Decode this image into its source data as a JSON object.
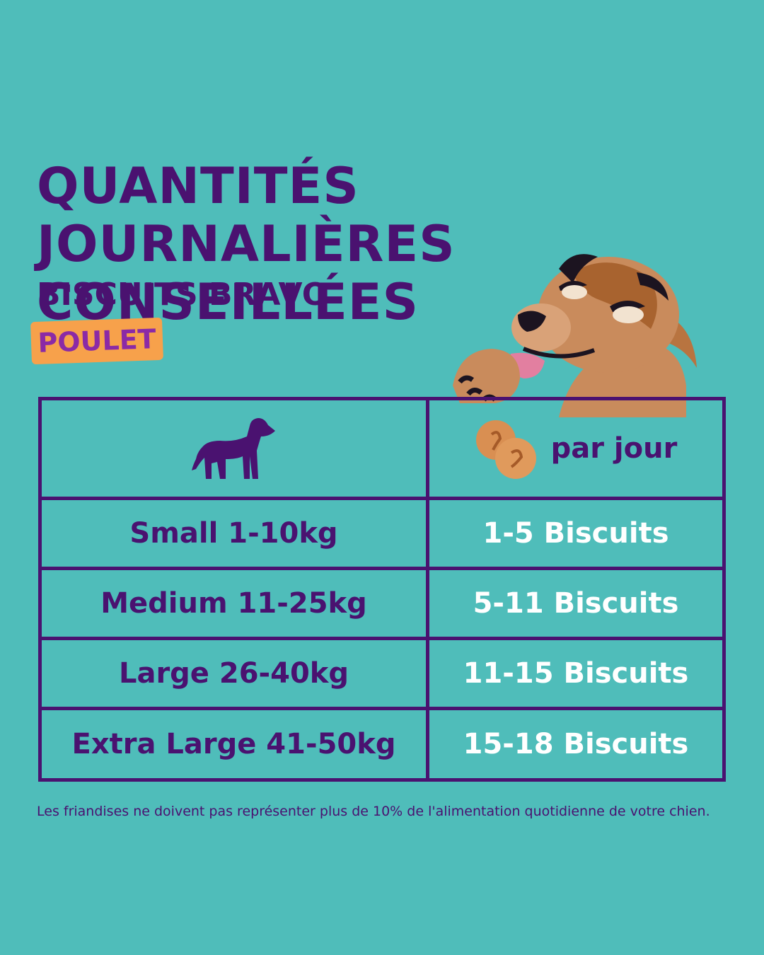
{
  "header": {
    "title": "QUANTITÉS JOURNALIÈRES CONSEILLÉES",
    "subtitle": "BISCUITS BRAVO",
    "badge": "POULET"
  },
  "table": {
    "header": {
      "left_icon": "dog-silhouette-icon",
      "right_icon": "biscuits-icon",
      "right_label": "par jour"
    },
    "rows": [
      {
        "size": "Small 1-10kg",
        "amount": "1-5 Biscuits"
      },
      {
        "size": "Medium 11-25kg",
        "amount": "5-11 Biscuits"
      },
      {
        "size": "Large 26-40kg",
        "amount": "11-15 Biscuits"
      },
      {
        "size": "Extra Large 41-50kg",
        "amount": "15-18 Biscuits"
      }
    ]
  },
  "footnote": "Les friandises ne doivent pas représenter plus de 10% de l'alimentation quotidienne de votre chien.",
  "colors": {
    "background": "#4fbdba",
    "purple": "#4a1270",
    "badge": "#f7a14b",
    "badge_text": "#8b2aa6",
    "white_text": "#ffffff"
  }
}
